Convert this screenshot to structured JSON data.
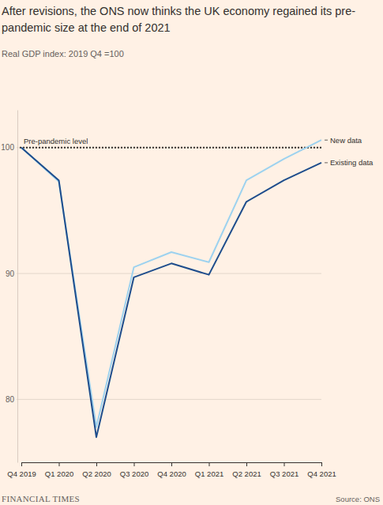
{
  "chart_data": {
    "type": "line",
    "title": "After revisions, the ONS now thinks the UK economy regained its pre-pandemic size at the end of 2021",
    "subtitle": "Real GDP index: 2019 Q4 =100",
    "categories": [
      "Q4 2019",
      "Q1 2020",
      "Q2 2020",
      "Q3 2020",
      "Q4 2020",
      "Q1 2021",
      "Q2 2021",
      "Q3 2021",
      "Q4 2021"
    ],
    "series": [
      {
        "name": "New data",
        "color": "#9dd2ef",
        "values": [
          100,
          97.3,
          77.8,
          90.5,
          91.7,
          90.9,
          97.4,
          99.1,
          100.6
        ]
      },
      {
        "name": "Existing data",
        "color": "#1e4d8c",
        "values": [
          100,
          97.4,
          77.0,
          89.7,
          90.8,
          89.9,
          95.7,
          97.4,
          98.8
        ]
      }
    ],
    "ylim": [
      75,
      103
    ],
    "yticks": [
      80,
      90,
      100
    ],
    "grid": true,
    "reference_line": {
      "value": 100,
      "label": "Pre-pandemic level"
    },
    "branding": "FINANCIAL TIMES",
    "source": "Source: ONS"
  }
}
